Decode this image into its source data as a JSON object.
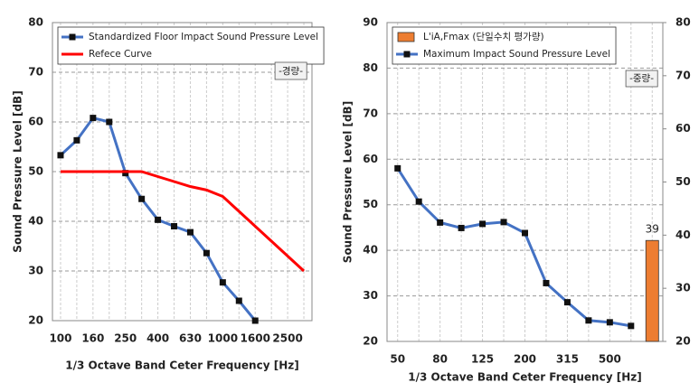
{
  "chart_data": [
    {
      "type": "line",
      "xlabel": "1/3 Octave Band Ceter Frequency [Hz]",
      "ylabel": "Sound Pressure  Level [dB]",
      "categories": [
        "100",
        null,
        "160",
        null,
        "250",
        null,
        "400",
        null,
        "630",
        null,
        "1000",
        null,
        "1600",
        null,
        "2500",
        null
      ],
      "ylim": [
        20,
        80
      ],
      "yticks": [
        20,
        30,
        40,
        50,
        60,
        70,
        80
      ],
      "grid": true,
      "legend": "upper left",
      "annotation": "-경량-",
      "series": [
        {
          "name": "Standardized Floor Impact Sound Pressure Level",
          "type": "line",
          "color": "#4472c4",
          "marker": "square",
          "values": [
            53.3,
            56.3,
            60.8,
            60,
            49.7,
            44.5,
            40.3,
            39,
            37.8,
            33.6,
            27.7,
            24,
            20,
            null,
            null,
            null
          ]
        },
        {
          "name": "Refecе Curve",
          "type": "line",
          "color": "#ff0000",
          "values": [
            50,
            50,
            50,
            50,
            50,
            50,
            49,
            48,
            47,
            46.3,
            45,
            42,
            39,
            36,
            33,
            30
          ]
        }
      ]
    },
    {
      "type": "line",
      "xlabel": "1/3 Octave Band Ceter Frequency [Hz]",
      "ylabel": "Sound Pressure  Level [dB]",
      "categories": [
        "50",
        null,
        "80",
        null,
        "125",
        null,
        "200",
        null,
        "315",
        null,
        "500",
        null,
        null
      ],
      "ylim": [
        20,
        90
      ],
      "yticks": [
        20,
        30,
        40,
        50,
        60,
        70,
        80,
        90
      ],
      "y2lim": [
        20,
        80
      ],
      "y2ticks": [
        20,
        30,
        40,
        50,
        60,
        70,
        80
      ],
      "grid": true,
      "legend": "upper left",
      "annotation": "-중량-",
      "series": [
        {
          "name": "L'iA,Fmax (단일수치 평가량)",
          "type": "bar",
          "axis": "y2",
          "color": "#ed7d31",
          "data_labels": true,
          "values": [
            null,
            null,
            null,
            null,
            null,
            null,
            null,
            null,
            null,
            null,
            null,
            null,
            39
          ]
        },
        {
          "name": "Maximum Impact Sound Pressure Level",
          "type": "line",
          "color": "#4472c4",
          "marker": "square",
          "values": [
            58,
            50.7,
            46.1,
            44.9,
            45.8,
            46.2,
            43.8,
            32.8,
            28.6,
            24.6,
            24.2,
            23.4,
            null
          ]
        }
      ]
    }
  ]
}
